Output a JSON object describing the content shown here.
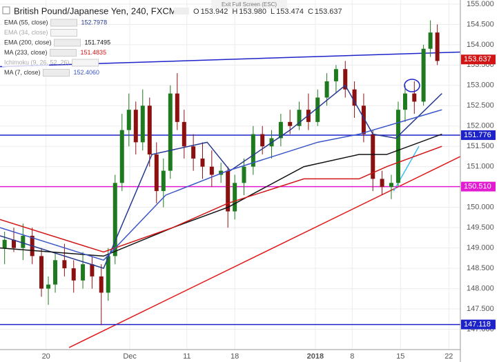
{
  "chart_data": {
    "type": "candlestick",
    "title": "British Pound/Japanese Yen, 240, FXCM",
    "banner": "Exit Full Screen (ESC)",
    "ohlc_header": {
      "open": 153.942,
      "high": 153.98,
      "high_label": "153.980",
      "low": 153.474,
      "close": 153.637,
      "open_key": "O",
      "high_key": "H",
      "low_key": "L",
      "close_key": "C"
    },
    "xlim": [
      0,
      100
    ],
    "xticks": [
      {
        "value": 10,
        "label": "20"
      },
      {
        "value": 28.2,
        "label": "Dec"
      },
      {
        "value": 40.6,
        "label": "11"
      },
      {
        "value": 51,
        "label": "18"
      },
      {
        "value": 68.5,
        "label": "2018"
      },
      {
        "value": 76.5,
        "label": "8"
      },
      {
        "value": 87,
        "label": "15"
      },
      {
        "value": 97.5,
        "label": "22"
      }
    ],
    "ylim": [
      146.5,
      155.1
    ],
    "yticks": [
      {
        "value": 147,
        "label": "147.000"
      },
      {
        "value": 147.5,
        "label": "147.500"
      },
      {
        "value": 148,
        "label": "148.000"
      },
      {
        "value": 148.5,
        "label": "148.500"
      },
      {
        "value": 149,
        "label": "149.000"
      },
      {
        "value": 149.5,
        "label": "149.500"
      },
      {
        "value": 150,
        "label": "150.000"
      },
      {
        "value": 150.5,
        "label": "150.500"
      },
      {
        "value": 151,
        "label": "151.000"
      },
      {
        "value": 151.5,
        "label": "151.500"
      },
      {
        "value": 152,
        "label": "152.000"
      },
      {
        "value": 152.5,
        "label": "152.500"
      },
      {
        "value": 153,
        "label": "153.000"
      },
      {
        "value": 153.5,
        "label": "153.500"
      },
      {
        "value": 154,
        "label": "154.000"
      },
      {
        "value": 154.5,
        "label": "154.500"
      },
      {
        "value": 155,
        "label": "155.000"
      }
    ],
    "grid": true,
    "up_color": "#1f7a1f",
    "down_color": "#8b1010",
    "candles": {
      "x": [
        1,
        3,
        5,
        7,
        9,
        10.5,
        12,
        14,
        16,
        18,
        20,
        22,
        23.5,
        25,
        26.5,
        28,
        29.5,
        31,
        32.5,
        34,
        35.5,
        37,
        38.5,
        40,
        42,
        44,
        46,
        48,
        49.5,
        51,
        53,
        55,
        57,
        59,
        61,
        63,
        65,
        67,
        69,
        71,
        73,
        75,
        77,
        79,
        81,
        83,
        85,
        86.5,
        88,
        90,
        92,
        93.5,
        95
      ],
      "open": [
        149.0,
        149.2,
        149.0,
        149.3,
        148.8,
        148.0,
        148.1,
        148.7,
        148.5,
        148.2,
        148.6,
        148.3,
        147.9,
        148.8,
        150.6,
        151.9,
        152.4,
        151.6,
        152.5,
        151.3,
        150.4,
        150.9,
        152.8,
        152.1,
        151.5,
        151.2,
        151.0,
        150.8,
        150.9,
        149.9,
        150.6,
        151.0,
        151.8,
        151.5,
        151.7,
        152.1,
        152.0,
        152.4,
        152.1,
        152.7,
        153.1,
        153.4,
        152.9,
        152.5,
        151.8,
        150.7,
        150.5,
        150.6,
        152.4,
        152.8,
        152.6,
        153.9,
        154.3
      ],
      "high": [
        149.4,
        149.5,
        149.6,
        149.5,
        149.0,
        148.3,
        148.9,
        149.1,
        148.7,
        148.9,
        148.8,
        148.6,
        149.0,
        150.8,
        152.3,
        152.8,
        152.6,
        152.9,
        152.7,
        151.6,
        151.2,
        153.0,
        153.3,
        152.4,
        151.8,
        151.6,
        151.4,
        151.1,
        151.0,
        150.8,
        151.2,
        152.0,
        152.0,
        151.9,
        152.3,
        152.4,
        152.6,
        152.8,
        152.9,
        153.3,
        153.5,
        153.6,
        153.1,
        152.8,
        151.9,
        150.9,
        150.8,
        152.6,
        153.0,
        153.1,
        154.0,
        154.6,
        154.5
      ],
      "low": [
        148.6,
        148.9,
        148.7,
        148.6,
        147.8,
        147.6,
        147.9,
        148.3,
        147.9,
        148.0,
        148.0,
        147.1,
        147.7,
        148.6,
        150.4,
        151.5,
        151.3,
        151.4,
        151.0,
        150.1,
        150.0,
        150.7,
        151.9,
        151.2,
        150.9,
        150.7,
        150.5,
        150.6,
        149.5,
        149.7,
        150.3,
        150.8,
        151.3,
        151.2,
        151.5,
        151.8,
        151.9,
        151.9,
        152.0,
        152.5,
        152.8,
        152.7,
        152.2,
        151.6,
        150.4,
        150.3,
        150.2,
        150.5,
        152.1,
        152.3,
        152.5,
        153.7,
        153.5
      ],
      "close": [
        149.2,
        149.0,
        149.3,
        148.8,
        148.0,
        148.1,
        148.7,
        148.5,
        148.2,
        148.6,
        148.3,
        147.9,
        148.8,
        150.6,
        151.9,
        152.4,
        151.6,
        152.5,
        151.3,
        150.4,
        150.9,
        152.8,
        152.1,
        151.5,
        151.2,
        151.0,
        150.8,
        150.9,
        149.9,
        150.6,
        151.0,
        151.8,
        151.5,
        151.7,
        152.1,
        152.0,
        152.4,
        152.1,
        152.7,
        153.1,
        153.4,
        152.9,
        152.5,
        151.8,
        150.7,
        150.5,
        150.6,
        152.4,
        152.8,
        152.6,
        153.9,
        154.3,
        153.6
      ]
    },
    "series": [
      {
        "name": "EMA (55, close)",
        "color": "#26388f",
        "last": 152.7978,
        "x": [
          0,
          22.5,
          33,
          45,
          50,
          63,
          75,
          81,
          86,
          96
        ],
        "values": [
          149.3,
          148.5,
          151.3,
          151.6,
          150.9,
          151.9,
          153.0,
          151.8,
          151.7,
          152.8
        ]
      },
      {
        "name": "EMA (34, close)",
        "color": "#b0b0b0",
        "hidden": true
      },
      {
        "name": "EMA (200, close)",
        "color": "#111111",
        "last": 151.7495,
        "x": [
          0,
          22.5,
          37.5,
          49.5,
          66,
          78,
          84,
          96
        ],
        "values": [
          149.0,
          148.8,
          149.5,
          150.0,
          151.0,
          151.3,
          151.3,
          151.8
        ]
      },
      {
        "name": "MA (233, close)",
        "color": "#d11515",
        "last": 151.4835,
        "x": [
          0,
          22.5,
          37.5,
          49.5,
          66,
          78,
          84,
          96
        ],
        "values": [
          149.7,
          148.9,
          149.5,
          150.1,
          150.7,
          150.7,
          151.0,
          151.5
        ]
      },
      {
        "name": "Ichimoku (9, 26, 52, 26)",
        "color": "#b0b0b0",
        "hidden": true
      },
      {
        "name": "MA (7, close)",
        "color": "#3a55c8",
        "last": 152.406,
        "last_label": "152.4060",
        "x": [
          0,
          22.5,
          36,
          49.5,
          69,
          78,
          87,
          96
        ],
        "values": [
          149.5,
          148.7,
          150.3,
          150.9,
          151.6,
          151.8,
          152.1,
          152.4
        ]
      }
    ],
    "price_lines": [
      {
        "value": 151.776,
        "color": "#1c22c8"
      },
      {
        "value": 150.51,
        "label": "150.510",
        "color": "#e21ad2"
      },
      {
        "value": 147.118,
        "color": "#1c22c8"
      },
      {
        "value": 153.637,
        "color": "#d11515",
        "no_line": true
      }
    ],
    "trendlines": [
      {
        "color": "#1c22c8",
        "x": [
          0,
          100
        ],
        "values": [
          153.46,
          153.82
        ]
      },
      {
        "color": "#e21a1a",
        "x": [
          15,
          100
        ],
        "values": [
          146.55,
          151.25
        ]
      },
      {
        "color": "#3cc0f0",
        "x": [
          85.5,
          91
        ],
        "values": [
          150.4,
          151.5
        ]
      }
    ]
  }
}
